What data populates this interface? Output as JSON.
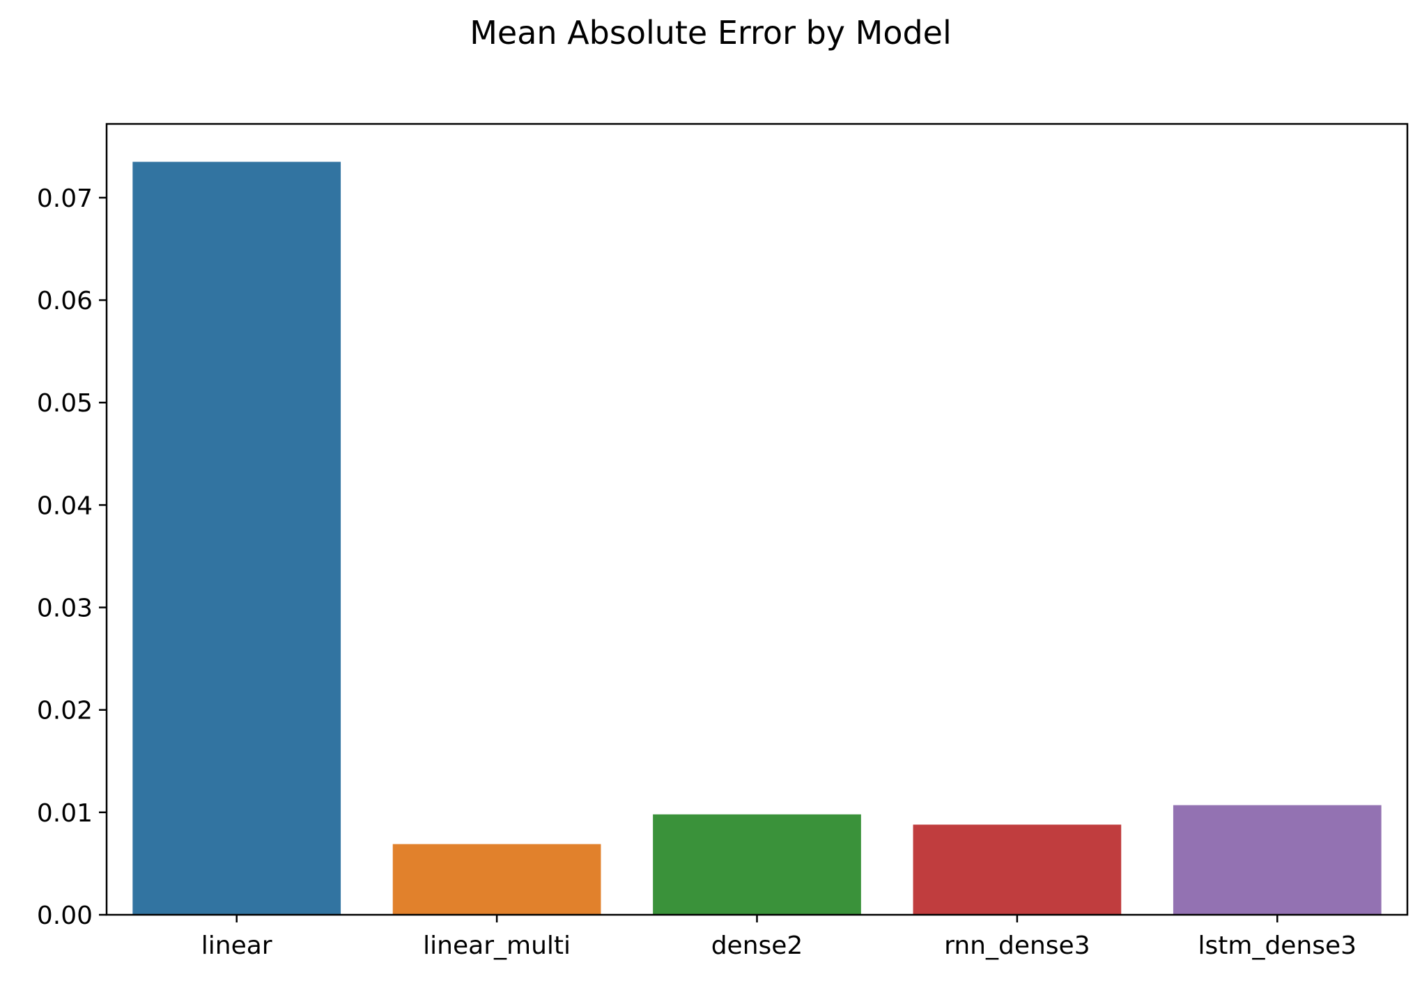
{
  "chart_data": {
    "type": "bar",
    "title": "Mean Absolute Error by Model",
    "xlabel": "",
    "ylabel": "",
    "categories": [
      "linear",
      "linear_multi",
      "dense2",
      "rnn_dense3",
      "lstm_dense3"
    ],
    "values": [
      0.0735,
      0.0069,
      0.0098,
      0.0088,
      0.0107
    ],
    "colors": [
      "#3274a1",
      "#e1812c",
      "#3a923a",
      "#c03d3e",
      "#9372b2"
    ],
    "ylim": [
      0,
      0.0772
    ],
    "yticks": [
      0.0,
      0.01,
      0.02,
      0.03,
      0.04,
      0.05,
      0.06,
      0.07
    ],
    "ytick_labels": [
      "0.00",
      "0.01",
      "0.02",
      "0.03",
      "0.04",
      "0.05",
      "0.06",
      "0.07"
    ],
    "grid": false,
    "legend": false
  }
}
